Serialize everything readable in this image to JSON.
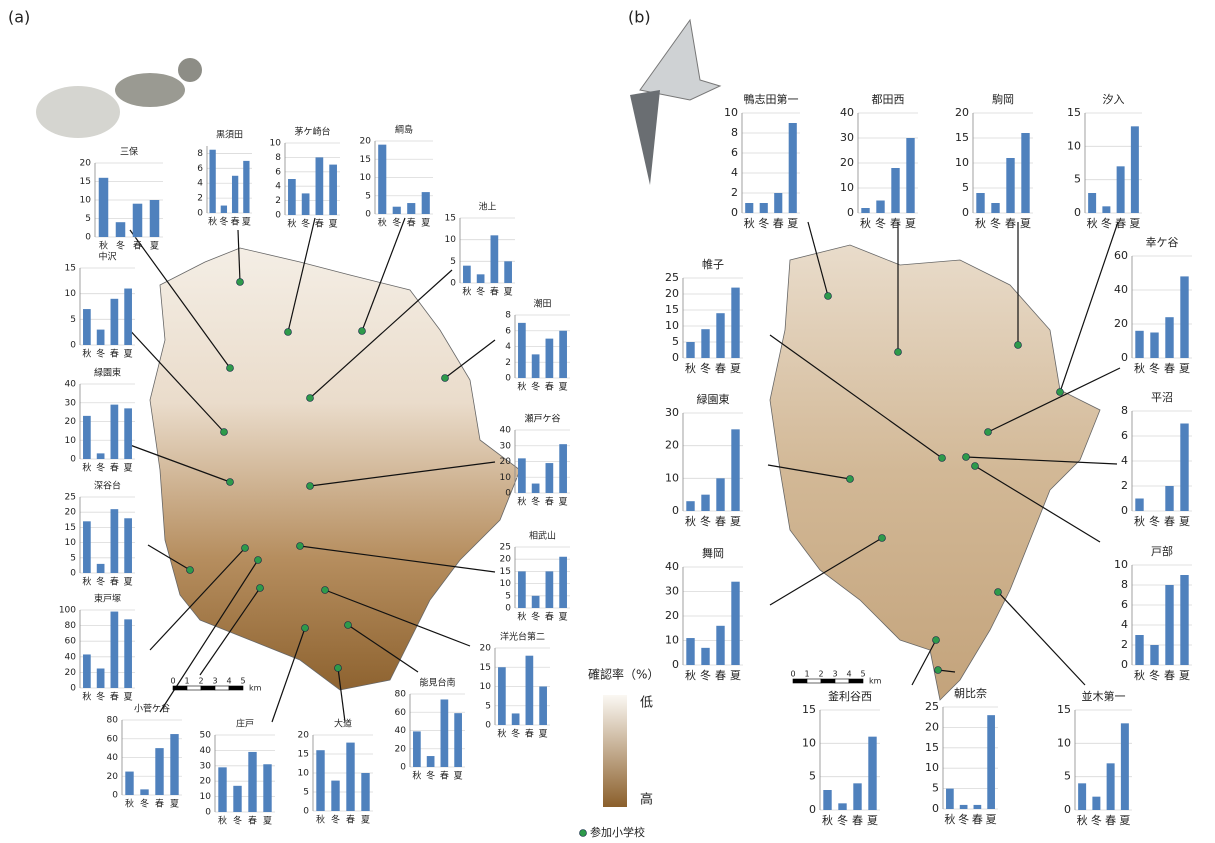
{
  "panels": [
    "(a)",
    "(b)"
  ],
  "legend": {
    "title": "確認率（%）",
    "low": "低",
    "high": "高",
    "marker": "参加小学校"
  },
  "scale_bar": {
    "ticks": [
      0,
      1,
      2,
      3,
      4,
      5
    ],
    "unit": "km"
  },
  "chart_data": [
    {
      "type": "bar",
      "title": "三保",
      "categories": [
        "秋",
        "冬",
        "春",
        "夏"
      ],
      "values": [
        16,
        4,
        9,
        10
      ],
      "color": "#4f81bd",
      "ylim": [
        0,
        20
      ],
      "yticks": [
        0,
        5,
        10,
        15,
        20
      ],
      "grid": true
    },
    {
      "type": "bar",
      "title": "黒須田",
      "categories": [
        "秋",
        "冬",
        "春",
        "夏"
      ],
      "values": [
        8.5,
        1,
        5,
        7
      ],
      "color": "#4f81bd",
      "ylim": [
        0,
        9
      ],
      "yticks": [
        0,
        2,
        4,
        6,
        8
      ],
      "grid": true
    },
    {
      "type": "bar",
      "title": "茅ケ崎台",
      "categories": [
        "秋",
        "冬",
        "春",
        "夏"
      ],
      "values": [
        5,
        3,
        8,
        7
      ],
      "color": "#4f81bd",
      "ylim": [
        0,
        10
      ],
      "yticks": [
        0,
        2,
        4,
        6,
        8,
        10
      ],
      "grid": true
    },
    {
      "type": "bar",
      "title": "綱島",
      "categories": [
        "秋",
        "冬",
        "春",
        "夏"
      ],
      "values": [
        19,
        2,
        3,
        6
      ],
      "color": "#4f81bd",
      "ylim": [
        0,
        20
      ],
      "yticks": [
        0,
        5,
        10,
        15,
        20
      ],
      "grid": true
    },
    {
      "type": "bar",
      "title": "池上",
      "categories": [
        "秋",
        "冬",
        "春",
        "夏"
      ],
      "values": [
        4,
        2,
        11,
        5
      ],
      "color": "#4f81bd",
      "ylim": [
        0,
        15
      ],
      "yticks": [
        0,
        5,
        10,
        15
      ],
      "grid": true
    },
    {
      "type": "bar",
      "title": "中沢",
      "categories": [
        "秋",
        "冬",
        "春",
        "夏"
      ],
      "values": [
        7,
        3,
        9,
        11
      ],
      "color": "#4f81bd",
      "ylim": [
        0,
        15
      ],
      "yticks": [
        0,
        5,
        10,
        15
      ],
      "grid": true
    },
    {
      "type": "bar",
      "title": "潮田",
      "categories": [
        "秋",
        "冬",
        "春",
        "夏"
      ],
      "values": [
        7,
        3,
        5,
        6
      ],
      "color": "#4f81bd",
      "ylim": [
        0,
        8
      ],
      "yticks": [
        0,
        2,
        4,
        6,
        8
      ],
      "grid": true
    },
    {
      "type": "bar",
      "title": "緑園東",
      "categories": [
        "秋",
        "冬",
        "春",
        "夏"
      ],
      "values": [
        23,
        3,
        29,
        27
      ],
      "color": "#4f81bd",
      "ylim": [
        0,
        40
      ],
      "yticks": [
        0,
        10,
        20,
        30,
        40
      ],
      "grid": true
    },
    {
      "type": "bar",
      "title": "瀬戸ケ谷",
      "categories": [
        "秋",
        "冬",
        "春",
        "夏"
      ],
      "values": [
        22,
        6,
        19,
        31
      ],
      "color": "#4f81bd",
      "ylim": [
        0,
        40
      ],
      "yticks": [
        0,
        10,
        20,
        30,
        40
      ],
      "grid": true
    },
    {
      "type": "bar",
      "title": "深谷台",
      "categories": [
        "秋",
        "冬",
        "春",
        "夏"
      ],
      "values": [
        17,
        3,
        21,
        18
      ],
      "color": "#4f81bd",
      "ylim": [
        0,
        25
      ],
      "yticks": [
        0,
        5,
        10,
        15,
        20,
        25
      ],
      "grid": true
    },
    {
      "type": "bar",
      "title": "相武山",
      "categories": [
        "秋",
        "冬",
        "春",
        "夏"
      ],
      "values": [
        15,
        5,
        15,
        21
      ],
      "color": "#4f81bd",
      "ylim": [
        0,
        25
      ],
      "yticks": [
        0,
        5,
        10,
        15,
        20,
        25
      ],
      "grid": true
    },
    {
      "type": "bar",
      "title": "東戸塚",
      "categories": [
        "秋",
        "冬",
        "春",
        "夏"
      ],
      "values": [
        43,
        25,
        98,
        88
      ],
      "color": "#4f81bd",
      "ylim": [
        0,
        100
      ],
      "yticks": [
        0,
        20,
        40,
        60,
        80,
        100
      ],
      "grid": true
    },
    {
      "type": "bar",
      "title": "洋光台第二",
      "categories": [
        "秋",
        "冬",
        "春",
        "夏"
      ],
      "values": [
        15,
        3,
        18,
        10
      ],
      "color": "#4f81bd",
      "ylim": [
        0,
        20
      ],
      "yticks": [
        0,
        5,
        10,
        15,
        20
      ],
      "grid": true
    },
    {
      "type": "bar",
      "title": "能見台南",
      "categories": [
        "秋",
        "冬",
        "春",
        "夏"
      ],
      "values": [
        39,
        12,
        74,
        59
      ],
      "color": "#4f81bd",
      "ylim": [
        0,
        80
      ],
      "yticks": [
        0,
        20,
        40,
        60,
        80
      ],
      "grid": true
    },
    {
      "type": "bar",
      "title": "小菅ケ谷",
      "categories": [
        "秋",
        "冬",
        "春",
        "夏"
      ],
      "values": [
        25,
        6,
        50,
        65
      ],
      "color": "#4f81bd",
      "ylim": [
        0,
        80
      ],
      "yticks": [
        0,
        20,
        40,
        60,
        80
      ],
      "grid": true
    },
    {
      "type": "bar",
      "title": "庄戸",
      "categories": [
        "秋",
        "冬",
        "春",
        "夏"
      ],
      "values": [
        29,
        17,
        39,
        31
      ],
      "color": "#4f81bd",
      "ylim": [
        0,
        50
      ],
      "yticks": [
        0,
        10,
        20,
        30,
        40,
        50
      ],
      "grid": true
    },
    {
      "type": "bar",
      "title": "大道",
      "categories": [
        "秋",
        "冬",
        "春",
        "夏"
      ],
      "values": [
        16,
        8,
        18,
        10
      ],
      "color": "#4f81bd",
      "ylim": [
        0,
        20
      ],
      "yticks": [
        0,
        5,
        10,
        15,
        20
      ],
      "grid": true
    },
    {
      "type": "bar",
      "title": "鴨志田第一",
      "categories": [
        "秋",
        "冬",
        "春",
        "夏"
      ],
      "values": [
        1,
        1,
        2,
        9
      ],
      "color": "#4f81bd",
      "ylim": [
        0,
        10
      ],
      "yticks": [
        0,
        2,
        4,
        6,
        8,
        10
      ],
      "grid": true
    },
    {
      "type": "bar",
      "title": "都田西",
      "categories": [
        "秋",
        "冬",
        "春",
        "夏"
      ],
      "values": [
        2,
        5,
        18,
        30
      ],
      "color": "#4f81bd",
      "ylim": [
        0,
        40
      ],
      "yticks": [
        0,
        10,
        20,
        30,
        40
      ],
      "grid": true
    },
    {
      "type": "bar",
      "title": "駒岡",
      "categories": [
        "秋",
        "冬",
        "春",
        "夏"
      ],
      "values": [
        4,
        2,
        11,
        16
      ],
      "color": "#4f81bd",
      "ylim": [
        0,
        20
      ],
      "yticks": [
        0,
        5,
        10,
        15,
        20
      ],
      "grid": true
    },
    {
      "type": "bar",
      "title": "汐入",
      "categories": [
        "秋",
        "冬",
        "春",
        "夏"
      ],
      "values": [
        3,
        1,
        7,
        13
      ],
      "color": "#4f81bd",
      "ylim": [
        0,
        15
      ],
      "yticks": [
        0,
        5,
        10,
        15
      ],
      "grid": true
    },
    {
      "type": "bar",
      "title": "帷子",
      "categories": [
        "秋",
        "冬",
        "春",
        "夏"
      ],
      "values": [
        5,
        9,
        14,
        22
      ],
      "color": "#4f81bd",
      "ylim": [
        0,
        25
      ],
      "yticks": [
        0,
        5,
        10,
        15,
        20,
        25
      ],
      "grid": true
    },
    {
      "type": "bar",
      "title": "幸ケ谷",
      "categories": [
        "秋",
        "冬",
        "春",
        "夏"
      ],
      "values": [
        16,
        15,
        24,
        48
      ],
      "color": "#4f81bd",
      "ylim": [
        0,
        60
      ],
      "yticks": [
        0,
        20,
        40,
        60
      ],
      "grid": true
    },
    {
      "type": "bar",
      "title": "緑園東",
      "categories": [
        "秋",
        "冬",
        "春",
        "夏"
      ],
      "values": [
        3,
        5,
        10,
        25
      ],
      "color": "#4f81bd",
      "ylim": [
        0,
        30
      ],
      "yticks": [
        0,
        10,
        20,
        30
      ],
      "grid": true
    },
    {
      "type": "bar",
      "title": "平沼",
      "categories": [
        "秋",
        "冬",
        "春",
        "夏"
      ],
      "values": [
        1,
        0,
        2,
        7
      ],
      "color": "#4f81bd",
      "ylim": [
        0,
        8
      ],
      "yticks": [
        0,
        2,
        4,
        6,
        8
      ],
      "grid": true
    },
    {
      "type": "bar",
      "title": "舞岡",
      "categories": [
        "秋",
        "冬",
        "春",
        "夏"
      ],
      "values": [
        11,
        7,
        16,
        34
      ],
      "color": "#4f81bd",
      "ylim": [
        0,
        40
      ],
      "yticks": [
        0,
        10,
        20,
        30,
        40
      ],
      "grid": true
    },
    {
      "type": "bar",
      "title": "戸部",
      "categories": [
        "秋",
        "冬",
        "春",
        "夏"
      ],
      "values": [
        3,
        2,
        8,
        9
      ],
      "color": "#4f81bd",
      "ylim": [
        0,
        10
      ],
      "yticks": [
        0,
        2,
        4,
        6,
        8,
        10
      ],
      "grid": true
    },
    {
      "type": "bar",
      "title": "釜利谷西",
      "categories": [
        "秋",
        "冬",
        "春",
        "夏"
      ],
      "values": [
        3,
        1,
        4,
        11
      ],
      "color": "#4f81bd",
      "ylim": [
        0,
        15
      ],
      "yticks": [
        0,
        5,
        10,
        15
      ],
      "grid": true
    },
    {
      "type": "bar",
      "title": "朝比奈",
      "categories": [
        "秋",
        "冬",
        "春",
        "夏"
      ],
      "values": [
        5,
        1,
        1,
        23
      ],
      "color": "#4f81bd",
      "ylim": [
        0,
        25
      ],
      "yticks": [
        0,
        5,
        10,
        15,
        20,
        25
      ],
      "grid": true
    },
    {
      "type": "bar",
      "title": "並木第一",
      "categories": [
        "秋",
        "冬",
        "春",
        "夏"
      ],
      "values": [
        4,
        2,
        7,
        13
      ],
      "color": "#4f81bd",
      "ylim": [
        0,
        15
      ],
      "yticks": [
        0,
        5,
        10,
        15
      ],
      "grid": true
    }
  ]
}
